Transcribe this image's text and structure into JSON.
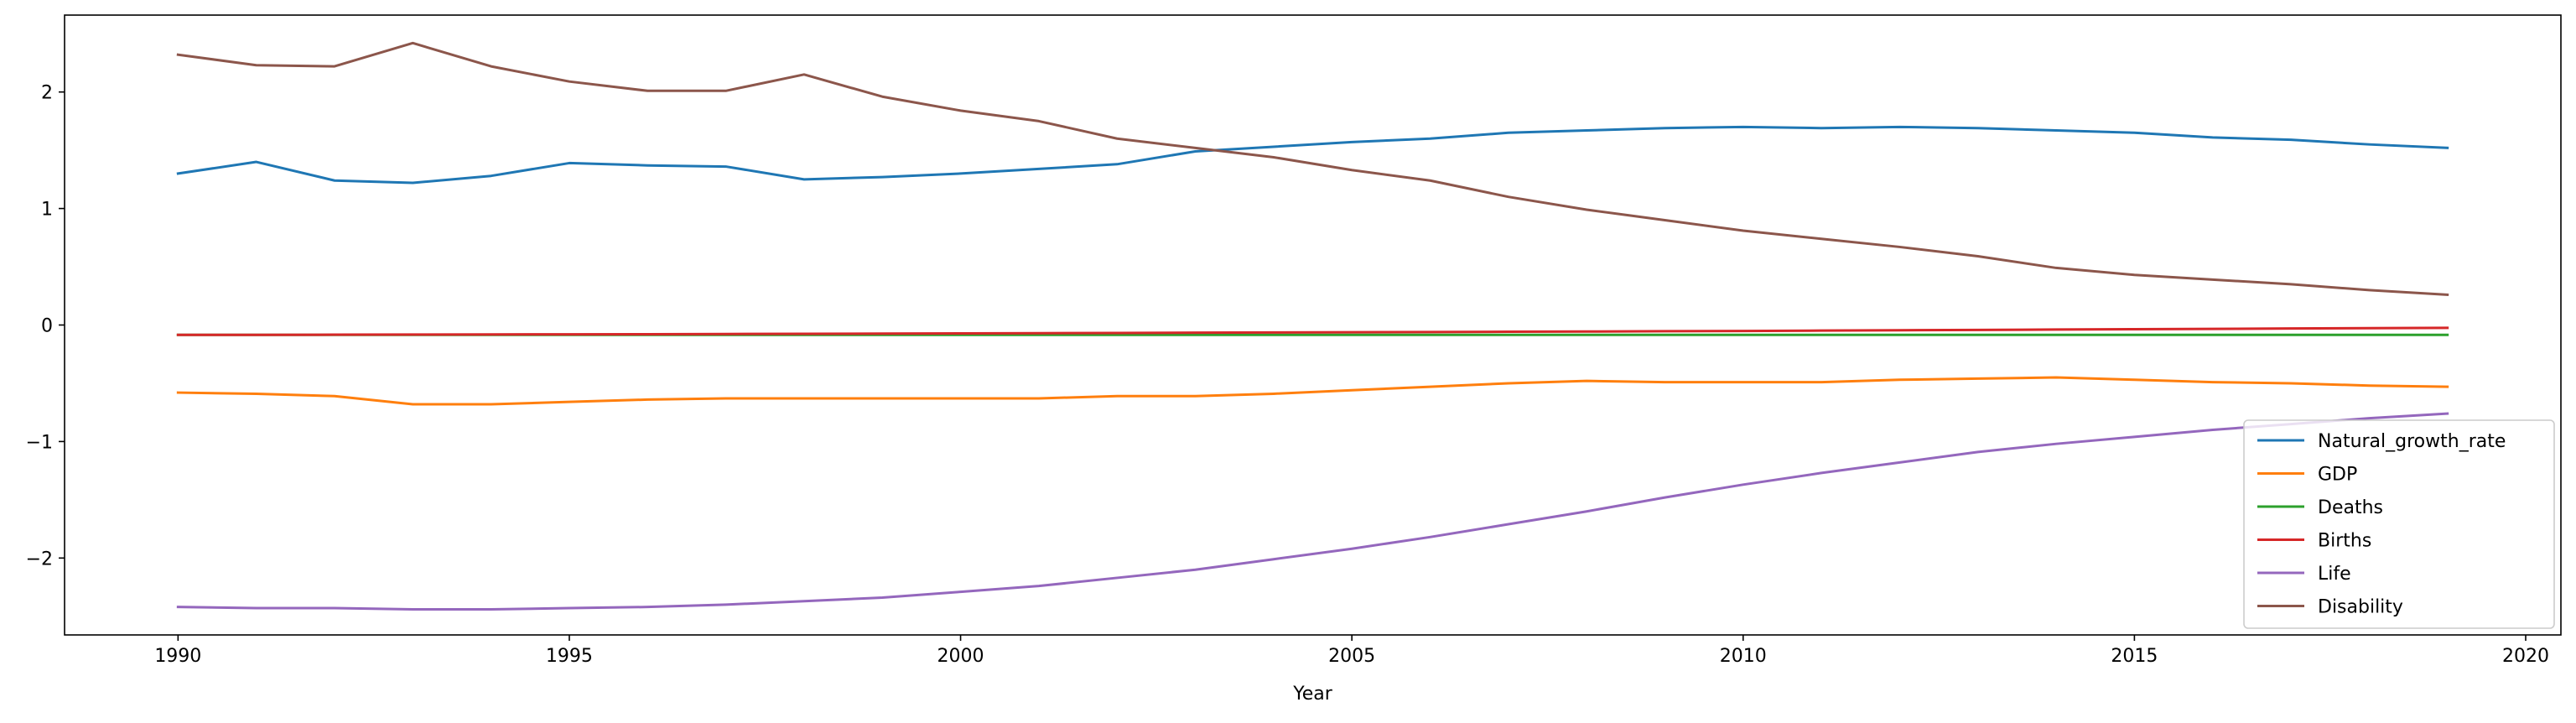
{
  "chart_data": {
    "type": "line",
    "title": "",
    "xlabel": "Year",
    "ylabel": "",
    "xlim": [
      1988.55,
      2020.45
    ],
    "ylim": [
      -2.66,
      2.66
    ],
    "xticks": [
      1990,
      1995,
      2000,
      2005,
      2010,
      2015,
      2020
    ],
    "yticks": [
      -2,
      -1,
      0,
      1,
      2
    ],
    "x": [
      1990,
      1991,
      1992,
      1993,
      1994,
      1995,
      1996,
      1997,
      1998,
      1999,
      2000,
      2001,
      2002,
      2003,
      2004,
      2005,
      2006,
      2007,
      2008,
      2009,
      2010,
      2011,
      2012,
      2013,
      2014,
      2015,
      2016,
      2017,
      2018,
      2019
    ],
    "grid": false,
    "legend_position": "lower-right",
    "series": [
      {
        "name": "Natural_growth_rate",
        "color": "#1f77b4",
        "values": [
          1.3,
          1.4,
          1.24,
          1.22,
          1.28,
          1.39,
          1.37,
          1.36,
          1.25,
          1.27,
          1.3,
          1.34,
          1.38,
          1.49,
          1.53,
          1.57,
          1.6,
          1.65,
          1.67,
          1.69,
          1.7,
          1.69,
          1.7,
          1.69,
          1.67,
          1.65,
          1.61,
          1.59,
          1.55,
          1.52
        ]
      },
      {
        "name": "GDP",
        "color": "#ff7f0e",
        "values": [
          -0.58,
          -0.59,
          -0.61,
          -0.68,
          -0.68,
          -0.66,
          -0.64,
          -0.63,
          -0.63,
          -0.63,
          -0.63,
          -0.63,
          -0.61,
          -0.61,
          -0.59,
          -0.56,
          -0.53,
          -0.5,
          -0.48,
          -0.49,
          -0.49,
          -0.49,
          -0.47,
          -0.46,
          -0.45,
          -0.47,
          -0.49,
          -0.5,
          -0.52,
          -0.53
        ]
      },
      {
        "name": "Deaths",
        "color": "#2ca02c",
        "values": [
          -0.085,
          -0.085,
          -0.085,
          -0.085,
          -0.085,
          -0.085,
          -0.085,
          -0.085,
          -0.085,
          -0.085,
          -0.085,
          -0.085,
          -0.085,
          -0.085,
          -0.085,
          -0.085,
          -0.085,
          -0.085,
          -0.085,
          -0.085,
          -0.085,
          -0.085,
          -0.085,
          -0.085,
          -0.085,
          -0.085,
          -0.085,
          -0.085,
          -0.085,
          -0.085
        ]
      },
      {
        "name": "Births",
        "color": "#d62728",
        "values": [
          -0.085,
          -0.085,
          -0.083,
          -0.082,
          -0.081,
          -0.08,
          -0.079,
          -0.077,
          -0.076,
          -0.074,
          -0.072,
          -0.07,
          -0.068,
          -0.066,
          -0.064,
          -0.062,
          -0.06,
          -0.058,
          -0.056,
          -0.053,
          -0.051,
          -0.048,
          -0.045,
          -0.042,
          -0.039,
          -0.036,
          -0.033,
          -0.03,
          -0.027,
          -0.024
        ]
      },
      {
        "name": "Life",
        "color": "#9467bd",
        "values": [
          -2.42,
          -2.43,
          -2.43,
          -2.44,
          -2.44,
          -2.43,
          -2.42,
          -2.4,
          -2.37,
          -2.34,
          -2.29,
          -2.24,
          -2.17,
          -2.1,
          -2.01,
          -1.92,
          -1.82,
          -1.71,
          -1.6,
          -1.48,
          -1.37,
          -1.27,
          -1.18,
          -1.09,
          -1.02,
          -0.96,
          -0.9,
          -0.85,
          -0.8,
          -0.76
        ]
      },
      {
        "name": "Disability",
        "color": "#8c564b",
        "values": [
          2.32,
          2.23,
          2.22,
          2.42,
          2.22,
          2.09,
          2.01,
          2.01,
          2.15,
          1.96,
          1.84,
          1.75,
          1.6,
          1.52,
          1.44,
          1.33,
          1.24,
          1.1,
          0.99,
          0.9,
          0.81,
          0.74,
          0.67,
          0.59,
          0.49,
          0.43,
          0.39,
          0.35,
          0.3,
          0.26
        ]
      }
    ]
  }
}
